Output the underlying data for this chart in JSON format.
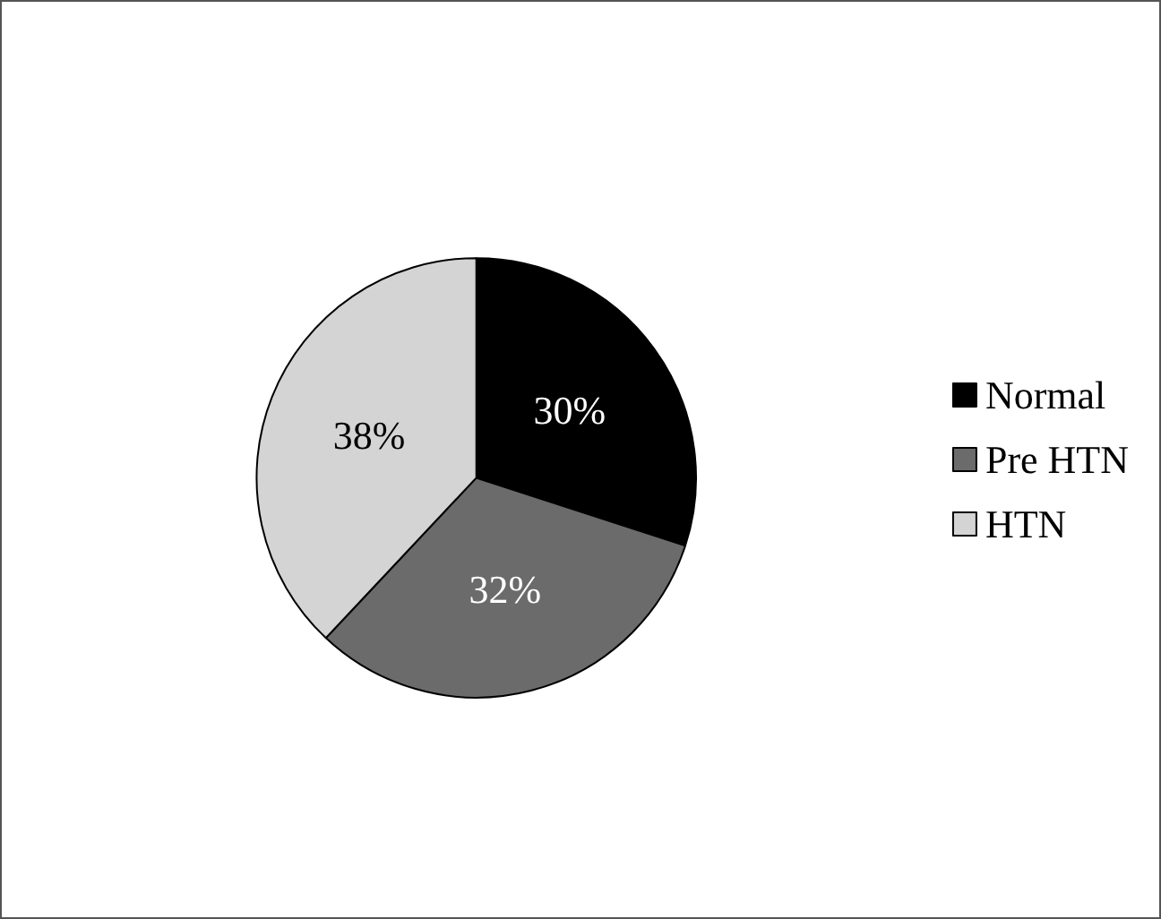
{
  "chart_data": {
    "type": "pie",
    "categories": [
      "Normal",
      "Pre HTN",
      "HTN"
    ],
    "values": [
      30,
      32,
      38
    ],
    "colors": [
      "#000000",
      "#6b6b6b",
      "#d4d4d4"
    ],
    "value_labels": [
      "30%",
      "32%",
      "38%"
    ],
    "legend": "right"
  }
}
